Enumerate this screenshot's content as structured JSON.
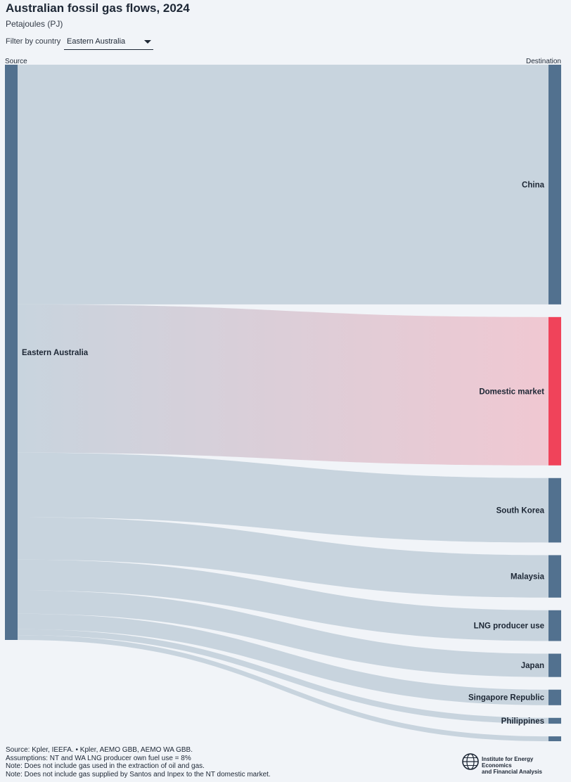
{
  "title": "Australian fossil gas flows, 2024",
  "subtitle": "Petajoules (PJ)",
  "filter": {
    "label": "Filter by country",
    "value": "Eastern Australia"
  },
  "columns": {
    "source": "Source",
    "destination": "Destination"
  },
  "colors": {
    "node": "#52718f",
    "link": "#c8d4de",
    "highlight": "#f0435a",
    "highlight_link": "#f0c8d2",
    "background": "#f1f4f8"
  },
  "chart_data": {
    "type": "sankey",
    "units": "Petajoules (PJ)",
    "source": "Eastern Australia",
    "flows": [
      {
        "target": "China",
        "value": 740,
        "highlight": false
      },
      {
        "target": "Domestic market",
        "value": 458,
        "highlight": true
      },
      {
        "target": "South Korea",
        "value": 199,
        "highlight": false
      },
      {
        "target": "Malaysia",
        "value": 131,
        "highlight": false
      },
      {
        "target": "LNG producer use",
        "value": 95,
        "highlight": false
      },
      {
        "target": "Japan",
        "value": 72,
        "highlight": false
      },
      {
        "target": "Singapore Republic",
        "value": 48,
        "highlight": false
      },
      {
        "target": "Philippines",
        "value": 18,
        "highlight": false
      },
      {
        "target": "",
        "value": 15,
        "highlight": false
      }
    ]
  },
  "footer": {
    "lines": [
      "Source: Kpler, IEEFA. • Kpler, AEMO GBB, AEMO WA GBB.",
      "Assumptions: NT and WA LNG producer own fuel use = 8%",
      "Note: Does not include gas used in the extraction of oil and gas.",
      "Note: Does not include gas supplied by Santos and Inpex to the NT domestic market."
    ]
  },
  "logo": {
    "line1": "Institute for Energy Economics",
    "line2": "and Financial Analysis"
  }
}
